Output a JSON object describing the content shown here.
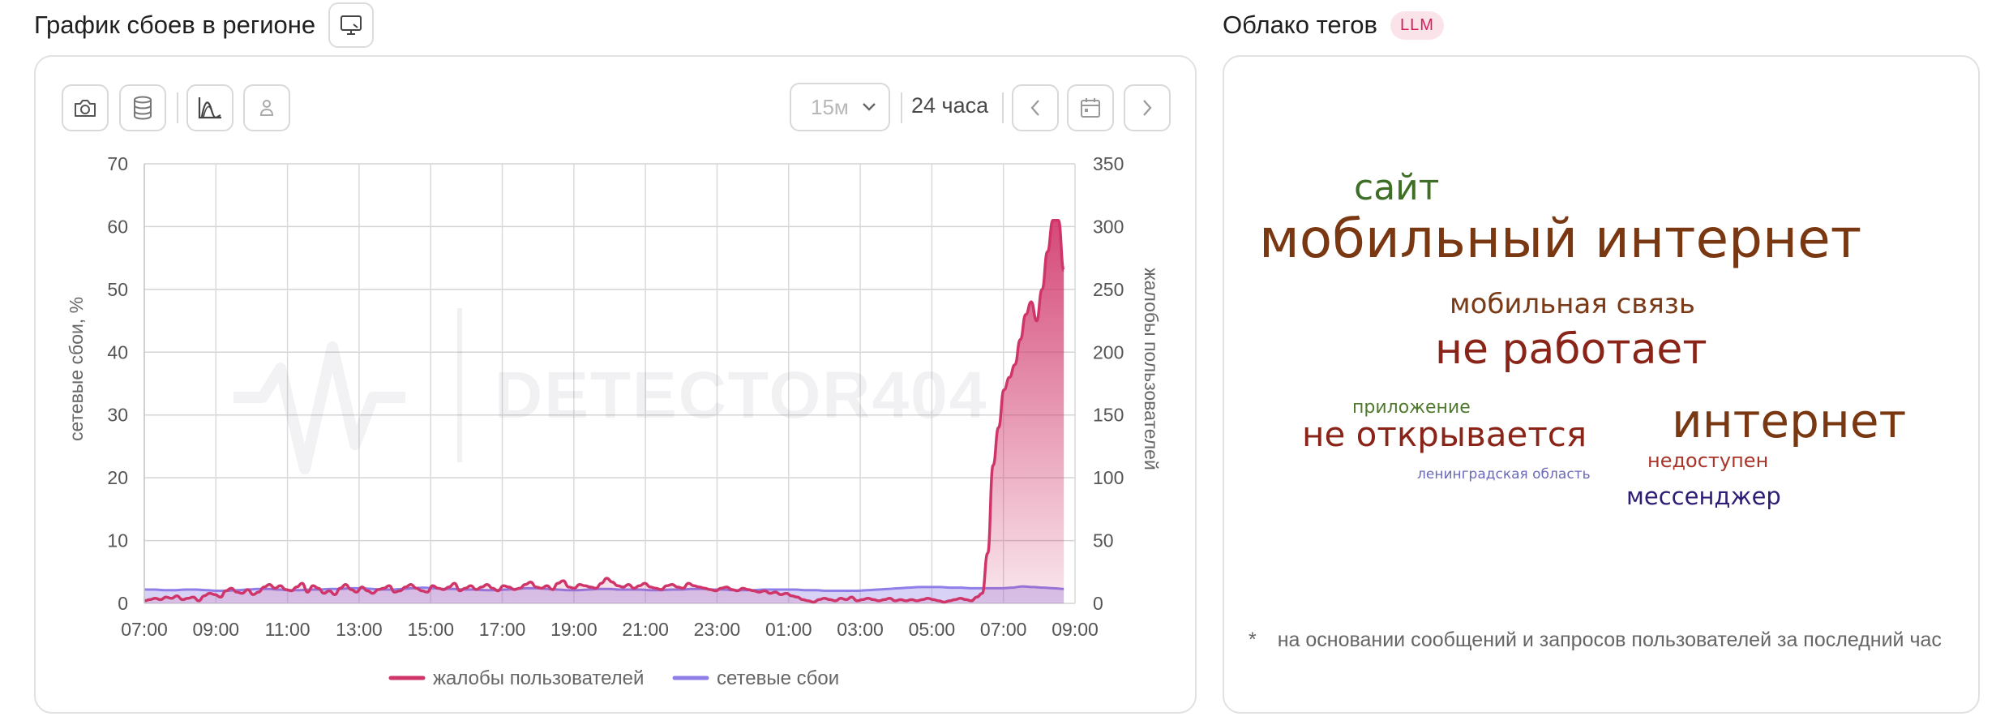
{
  "outage_panel": {
    "title": "График сбоев в регионе",
    "title_icon": "tv-icon",
    "toolbar": {
      "screenshot_icon": "camera-icon",
      "data_icon": "database-icon",
      "chart_mode_icon": "chart-curve-icon",
      "user_icon": "person-icon",
      "interval": "15м",
      "interval_icon": "chevron-down-icon",
      "range": "24 часа",
      "prev_icon": "chevron-left-icon",
      "calendar_icon": "calendar-icon",
      "next_icon": "chevron-right-icon"
    },
    "watermark": "DETECTOR404"
  },
  "chart_data": {
    "type": "area",
    "ylabel_left": "сетевые сбои, %",
    "ylabel_right": "жалобы пользователей",
    "ylim_left": [
      0,
      70
    ],
    "ylim_right": [
      0,
      350
    ],
    "yticks_left": [
      "0",
      "10",
      "20",
      "30",
      "40",
      "50",
      "60",
      "70"
    ],
    "yticks_right": [
      "0",
      "50",
      "100",
      "150",
      "200",
      "250",
      "300",
      "350"
    ],
    "xticks": [
      "07:00",
      "09:00",
      "11:00",
      "13:00",
      "15:00",
      "17:00",
      "19:00",
      "21:00",
      "23:00",
      "01:00",
      "03:00",
      "05:00",
      "07:00",
      "09:00"
    ],
    "grid": true,
    "legend_position": "bottom",
    "series": [
      {
        "name": "жалобы пользователей",
        "axis": "right",
        "color": "#d0356a",
        "values": [
          2,
          3,
          4,
          3,
          5,
          4,
          6,
          3,
          4,
          5,
          2,
          6,
          8,
          7,
          5,
          10,
          12,
          9,
          8,
          11,
          7,
          9,
          13,
          15,
          12,
          14,
          11,
          10,
          13,
          16,
          9,
          14,
          12,
          8,
          10,
          7,
          12,
          15,
          11,
          9,
          13,
          10,
          8,
          11,
          12,
          14,
          9,
          10,
          13,
          15,
          12,
          10,
          9,
          14,
          12,
          11,
          13,
          16,
          10,
          12,
          14,
          11,
          13,
          15,
          12,
          10,
          14,
          13,
          11,
          12,
          15,
          17,
          13,
          12,
          14,
          11,
          16,
          18,
          13,
          12,
          15,
          14,
          13,
          12,
          16,
          20,
          17,
          14,
          13,
          15,
          12,
          14,
          16,
          13,
          12,
          11,
          14,
          15,
          13,
          12,
          16,
          14,
          13,
          12,
          11,
          10,
          12,
          13,
          11,
          10,
          12,
          11,
          10,
          9,
          10,
          8,
          9,
          7,
          8,
          6,
          5,
          3,
          2,
          1,
          3,
          4,
          3,
          2,
          4,
          3,
          5,
          2,
          3,
          4,
          3,
          2,
          3,
          4,
          2,
          3,
          2,
          3,
          2,
          3,
          4,
          3,
          2,
          1,
          2,
          3,
          4,
          3,
          2,
          5,
          8,
          40,
          110,
          140,
          170,
          180,
          190,
          210,
          230,
          240,
          225,
          250,
          280,
          305,
          305,
          265
        ]
      },
      {
        "name": "сетевые сбои",
        "axis": "left",
        "color": "#8f7de8",
        "values": [
          2.2,
          2.2,
          2.1,
          2.1,
          2.2,
          2.2,
          2.1,
          2.0,
          2.0,
          2.1,
          2.2,
          2.3,
          2.3,
          2.2,
          2.1,
          2.1,
          2.2,
          2.2,
          2.3,
          2.3,
          2.4,
          2.4,
          2.3,
          2.2,
          2.2,
          2.3,
          2.4,
          2.5,
          2.4,
          2.3,
          2.3,
          2.2,
          2.2,
          2.1,
          2.1,
          2.2,
          2.3,
          2.4,
          2.4,
          2.3,
          2.2,
          2.1,
          2.1,
          2.2,
          2.3,
          2.3,
          2.2,
          2.2,
          2.2,
          2.1,
          2.1,
          2.2,
          2.2,
          2.3,
          2.3,
          2.2,
          2.2,
          2.1,
          2.1,
          2.1,
          2.2,
          2.2,
          2.2,
          2.2,
          2.1,
          2.1,
          2.0,
          2.0,
          2.0,
          2.0,
          2.1,
          2.2,
          2.3,
          2.4,
          2.5,
          2.6,
          2.6,
          2.6,
          2.5,
          2.5,
          2.4,
          2.4,
          2.4,
          2.4,
          2.5,
          2.7,
          2.6,
          2.5,
          2.4,
          2.3
        ]
      }
    ]
  },
  "tag_cloud": {
    "title": "Облако тегов",
    "badge": "LLM",
    "tags": [
      {
        "text": "сайт",
        "color": "#3f6f26"
      },
      {
        "text": "мобильный интернет",
        "color": "#7a3812"
      },
      {
        "text": "мобильная связь",
        "color": "#7a3a17"
      },
      {
        "text": "не работает",
        "color": "#8a2418"
      },
      {
        "text": "приложение",
        "color": "#4f7a2e"
      },
      {
        "text": "интернет",
        "color": "#7a3812"
      },
      {
        "text": "не открывается",
        "color": "#8a2418"
      },
      {
        "text": "недоступен",
        "color": "#a8342a"
      },
      {
        "text": "ленинградская область",
        "color": "#6a6ab8"
      },
      {
        "text": "мессенджер",
        "color": "#2e1d73"
      }
    ],
    "footnote_marker": "*",
    "footnote": "на основании сообщений и запросов пользователей за последний час"
  }
}
